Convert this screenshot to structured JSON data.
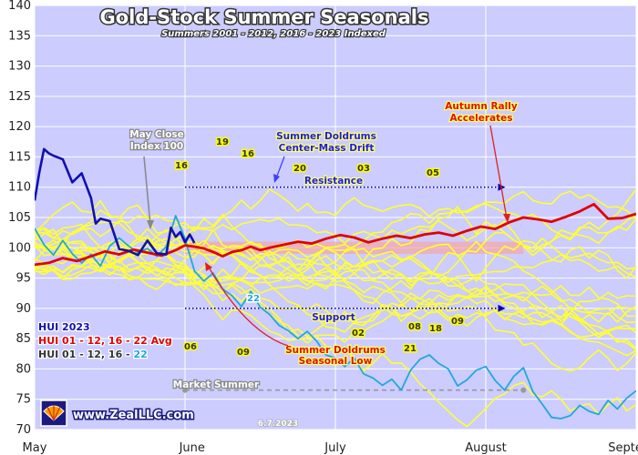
{
  "chart_data": {
    "type": "line",
    "title": "Gold-Stock Summer Seasonals",
    "subtitle": "Summers 2001 - 2012, 2016 - 2023 Indexed",
    "x_tick_labels": [
      "May",
      "June",
      "July",
      "August",
      "September"
    ],
    "y_ticks": [
      70,
      75,
      80,
      85,
      90,
      95,
      100,
      105,
      110,
      115,
      120,
      125,
      130,
      135,
      140
    ],
    "ylim": [
      70,
      140
    ],
    "grid": true,
    "colors": {
      "plot_bg": "#ccccff",
      "grid": "#ffffff",
      "individual_years": "#ffff33",
      "hui_2023": "#1010b0",
      "average": "#e00000",
      "hui_2022": "#1fa8e0",
      "resistance": "#0000aa",
      "market_summer": "#999999",
      "band": "#f4a8a8"
    },
    "series": [
      {
        "name": "HUI 01 - 12, 16 - 22 Avg",
        "x": [
          0,
          3,
          6,
          9,
          12,
          15,
          18,
          21,
          24,
          27,
          30,
          32,
          34,
          36,
          38,
          40,
          42,
          44,
          46,
          48,
          50,
          53,
          56,
          59,
          62,
          65,
          68,
          71,
          74,
          77,
          80,
          83,
          86,
          89,
          92,
          95,
          98,
          101,
          104,
          107,
          110,
          113,
          116,
          119,
          122,
          125,
          128
        ],
        "values": [
          97.2,
          97.5,
          98.3,
          97.8,
          98.6,
          99.4,
          98.9,
          99.7,
          99.2,
          98.7,
          99.6,
          100.4,
          100.2,
          99.9,
          99.3,
          98.6,
          99.3,
          99.6,
          100.2,
          99.6,
          100.0,
          100.5,
          101.0,
          100.7,
          101.5,
          102.1,
          101.7,
          100.9,
          101.5,
          102.0,
          101.6,
          102.2,
          102.5,
          102.0,
          102.8,
          103.5,
          103.1,
          104.2,
          105.0,
          104.7,
          104.3,
          105.1,
          106.0,
          107.2,
          104.8,
          104.9,
          105.6
        ]
      },
      {
        "name": "HUI 2023",
        "x": [
          0,
          1,
          2,
          3,
          4,
          6,
          8,
          10,
          12,
          13,
          14,
          16,
          18,
          20,
          22,
          24,
          26,
          28,
          29,
          30,
          31,
          32,
          33,
          34
        ],
        "values": [
          107.8,
          112.5,
          116.3,
          115.6,
          115.2,
          114.6,
          110.8,
          112.3,
          108.2,
          104.0,
          104.8,
          104.4,
          99.8,
          99.5,
          98.8,
          101.2,
          99.1,
          98.9,
          103.3,
          101.8,
          102.6,
          100.9,
          102.2,
          100.8
        ]
      },
      {
        "name": "HUI 2022",
        "year_label": "22",
        "x": [
          0,
          2,
          4,
          6,
          8,
          10,
          12,
          14,
          16,
          18,
          20,
          22,
          24,
          26,
          28,
          30,
          32,
          34,
          36,
          38,
          40,
          42,
          44,
          46,
          48,
          50,
          52,
          54,
          56,
          58,
          60,
          62,
          64,
          66,
          68,
          70,
          72,
          74,
          76,
          78,
          80,
          82,
          84,
          86,
          88,
          90,
          92,
          94,
          96,
          98,
          100,
          102,
          104,
          106,
          108,
          110,
          112,
          114,
          116,
          118,
          120,
          122,
          124,
          126,
          128
        ],
        "values": [
          103.2,
          100.5,
          98.8,
          101.2,
          99.0,
          97.5,
          98.9,
          97.0,
          100.3,
          101.6,
          100.3,
          99.2,
          99.9,
          98.6,
          100.2,
          105.3,
          101.5,
          96.2,
          94.5,
          95.8,
          93.2,
          92.1,
          90.3,
          92.8,
          90.2,
          89.0,
          87.2,
          86.3,
          85.0,
          86.2,
          84.6,
          82.3,
          81.8,
          80.4,
          81.8,
          79.2,
          78.5,
          77.3,
          78.3,
          76.5,
          79.8,
          81.6,
          82.3,
          80.9,
          80.0,
          77.2,
          78.2,
          79.8,
          80.4,
          78.1,
          76.5,
          78.8,
          80.2,
          76.3,
          74.2,
          72.0,
          71.8,
          72.3,
          74.0,
          73.0,
          72.5,
          74.8,
          73.4,
          75.2,
          76.4
        ]
      }
    ],
    "annotations": {
      "may_close": [
        "May Close",
        "Index 100"
      ],
      "doldrums_drift": [
        "Summer Doldrums",
        "Center-Mass Drift"
      ],
      "autumn_rally": [
        "Autumn Rally",
        "Accelerates"
      ],
      "resistance": "Resistance",
      "support": "Support",
      "seasonal_low": [
        "Summer Doldrums",
        "Seasonal Low"
      ],
      "market_summer": "Market Summer",
      "year_labels": [
        "19",
        "16",
        "16",
        "20",
        "03",
        "05",
        "06",
        "09",
        "02",
        "08",
        "18",
        "09",
        "21"
      ]
    },
    "reference_levels": {
      "resistance": 110,
      "support": 90,
      "market_summer": 76.5,
      "band": [
        99,
        101
      ]
    }
  },
  "legend": {
    "hui_2023": "HUI 2023",
    "average": "HUI 01 - 12, 16 - 22 Avg",
    "years_prefix": "HUI 01 - 12, 16 - ",
    "years_highlight": "22"
  },
  "brand": {
    "logo_icon": "zeal-shell-logo-icon",
    "text": "www.ZealLLC.com"
  },
  "date_stamp": "6.7.2023"
}
